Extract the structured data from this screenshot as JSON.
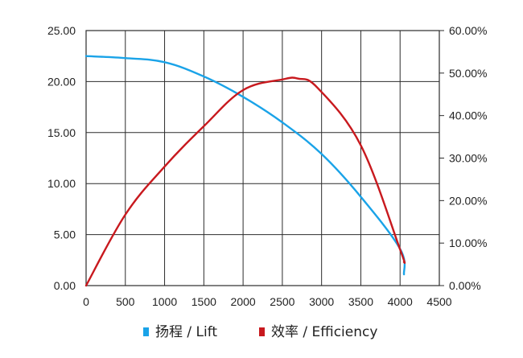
{
  "chart_data": {
    "type": "line",
    "title": "",
    "xlabel": "",
    "ylabel": "",
    "y2label": "",
    "xlim": [
      0,
      4500
    ],
    "ylim": [
      0,
      25
    ],
    "y2lim": [
      0,
      0.6
    ],
    "grid": true,
    "legend_position": "bottom",
    "x_ticks": [
      "0",
      "500",
      "1000",
      "1500",
      "2000",
      "2500",
      "3000",
      "3500",
      "4000",
      "4500"
    ],
    "y_ticks": [
      "0.00",
      "5.00",
      "10.00",
      "15.00",
      "20.00",
      "25.00"
    ],
    "y2_ticks": [
      "0.00%",
      "10.00%",
      "20.00%",
      "30.00%",
      "40.00%",
      "50.00%",
      "60.00%"
    ],
    "series": [
      {
        "name": "扬程 / Lift",
        "axis": "left",
        "color": "#1aa3e8",
        "x": [
          0,
          500,
          1000,
          1500,
          2000,
          2500,
          3000,
          3500,
          4000,
          4050
        ],
        "y": [
          22.5,
          22.3,
          21.9,
          20.5,
          18.5,
          16.0,
          12.9,
          8.7,
          3.6,
          1.1
        ]
      },
      {
        "name": "效率 / Efficiency",
        "axis": "right",
        "color": "#c8191e",
        "x": [
          0,
          500,
          1000,
          1500,
          2000,
          2500,
          2700,
          2950,
          3500,
          4000,
          4050
        ],
        "y": [
          0.0,
          0.167,
          0.28,
          0.375,
          0.46,
          0.485,
          0.487,
          0.465,
          0.33,
          0.085,
          0.055
        ]
      }
    ]
  }
}
